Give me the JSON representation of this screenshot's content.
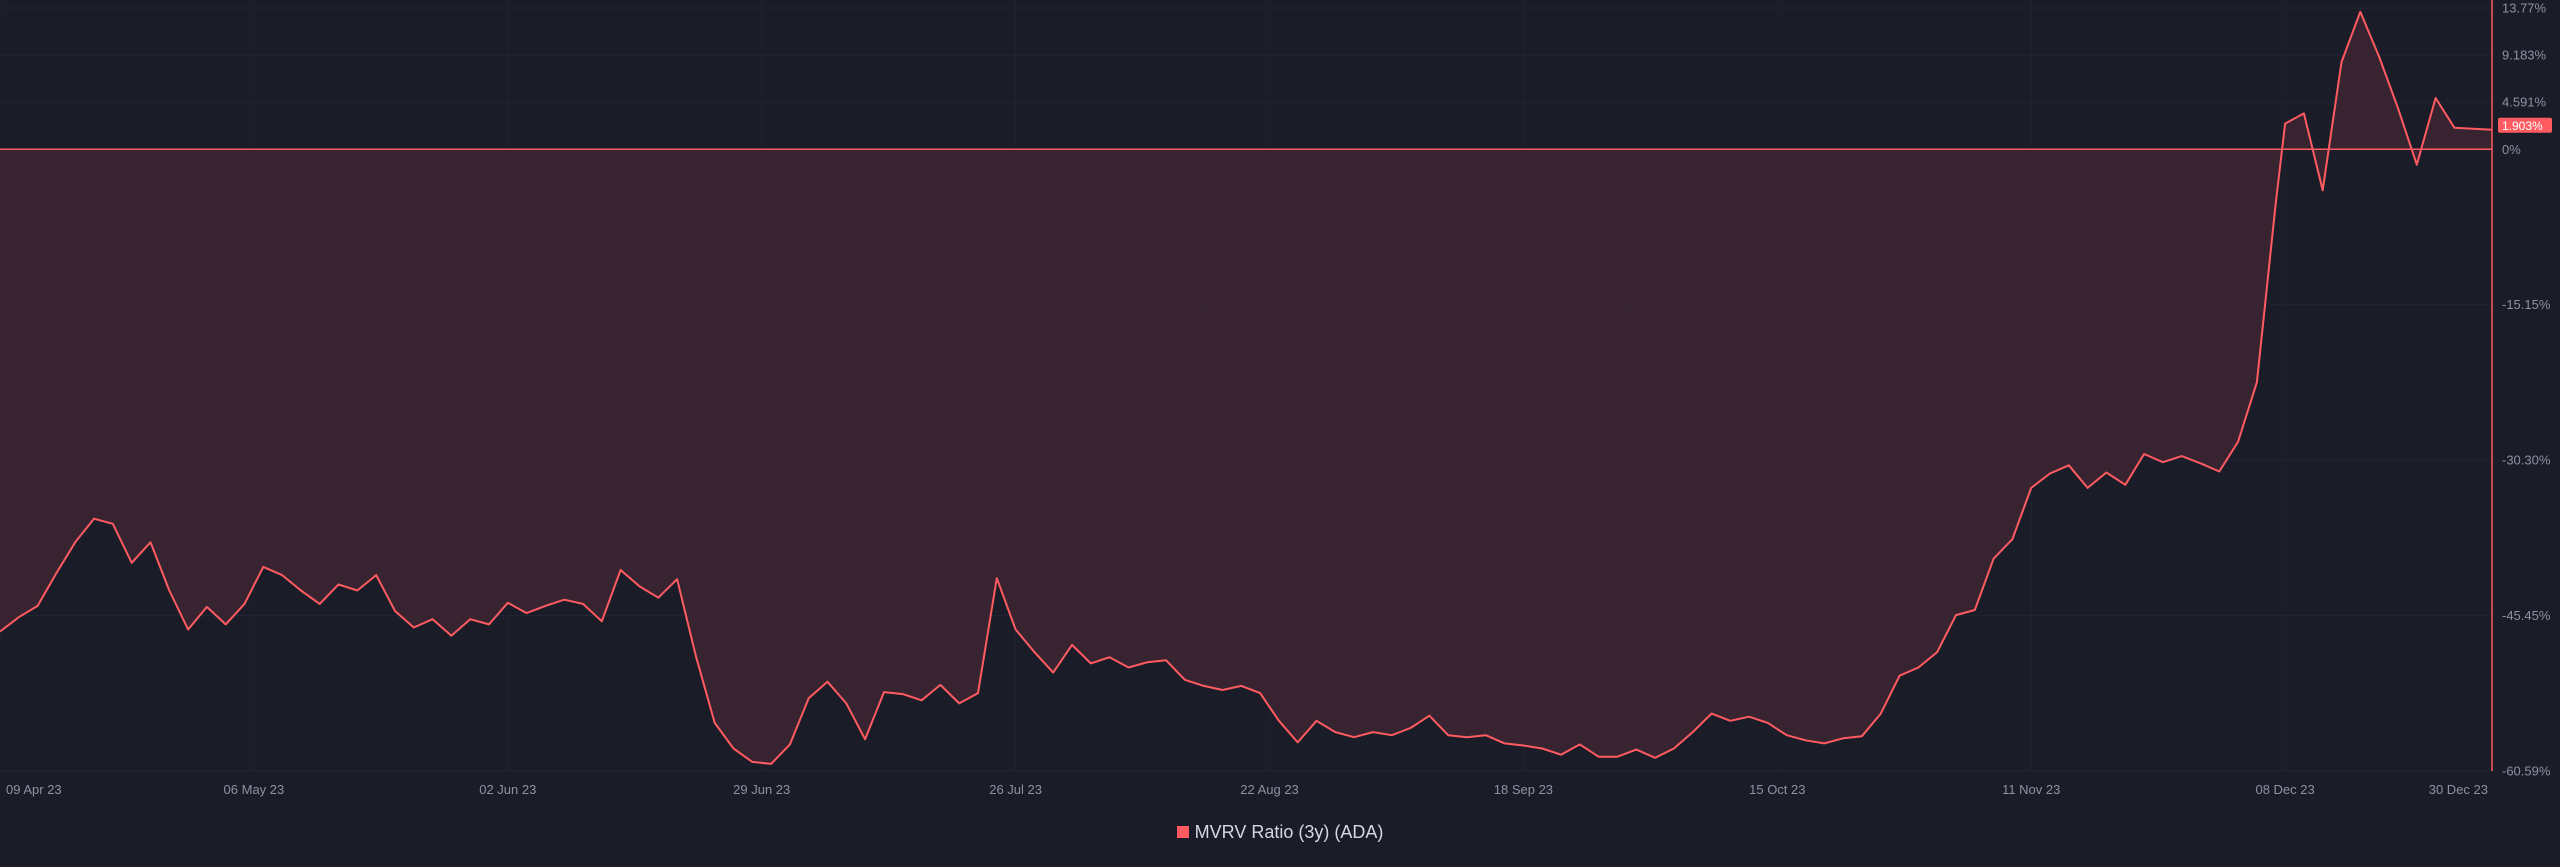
{
  "legend": {
    "label": "MVRV Ratio (3y) (ADA)"
  },
  "watermark": "·santiment·",
  "current_value_badge": "1.903%",
  "colors": {
    "background": "#1a1c28",
    "line": "#ff5b61",
    "fill_negative": "#3a2532",
    "badge": "#ff5b61"
  },
  "chart_data": {
    "type": "area",
    "title": "",
    "xlabel": "",
    "ylabel": "",
    "x_ticks": [
      "09 Apr 23",
      "06 May 23",
      "02 Jun 23",
      "29 Jun 23",
      "26 Jul 23",
      "22 Aug 23",
      "18 Sep 23",
      "15 Oct 23",
      "11 Nov 23",
      "08 Dec 23",
      "30 Dec 23"
    ],
    "y_ticks": [
      "13.77%",
      "9.183%",
      "4.591%",
      "0%",
      "-15.15%",
      "-30.30%",
      "-45.45%",
      "-60.59%"
    ],
    "ylim": [
      -60.59,
      13.77
    ],
    "xlim": [
      "2023-04-09",
      "2023-12-30"
    ],
    "baseline": 0,
    "grid": true,
    "legend_position": "bottom-center",
    "series": [
      {
        "name": "MVRV Ratio (3y) (ADA)",
        "points": [
          [
            "2023-04-09",
            -47.0
          ],
          [
            "2023-04-11",
            -45.6
          ],
          [
            "2023-04-13",
            -44.5
          ],
          [
            "2023-04-15",
            -41.3
          ],
          [
            "2023-04-17",
            -38.3
          ],
          [
            "2023-04-19",
            -36.0
          ],
          [
            "2023-04-21",
            -36.5
          ],
          [
            "2023-04-23",
            -40.3
          ],
          [
            "2023-04-25",
            -38.3
          ],
          [
            "2023-04-27",
            -43.0
          ],
          [
            "2023-04-29",
            -46.8
          ],
          [
            "2023-05-01",
            -44.6
          ],
          [
            "2023-05-03",
            -46.3
          ],
          [
            "2023-05-05",
            -44.3
          ],
          [
            "2023-05-07",
            -40.7
          ],
          [
            "2023-05-09",
            -41.5
          ],
          [
            "2023-05-11",
            -43.0
          ],
          [
            "2023-05-13",
            -44.3
          ],
          [
            "2023-05-15",
            -42.4
          ],
          [
            "2023-05-17",
            -43.0
          ],
          [
            "2023-05-19",
            -41.5
          ],
          [
            "2023-05-21",
            -45.0
          ],
          [
            "2023-05-23",
            -46.6
          ],
          [
            "2023-05-25",
            -45.8
          ],
          [
            "2023-05-27",
            -47.4
          ],
          [
            "2023-05-29",
            -45.8
          ],
          [
            "2023-05-31",
            -46.3
          ],
          [
            "2023-06-02",
            -44.2
          ],
          [
            "2023-06-04",
            -45.2
          ],
          [
            "2023-06-06",
            -44.5
          ],
          [
            "2023-06-08",
            -43.9
          ],
          [
            "2023-06-10",
            -44.3
          ],
          [
            "2023-06-12",
            -46.0
          ],
          [
            "2023-06-14",
            -41.0
          ],
          [
            "2023-06-16",
            -42.6
          ],
          [
            "2023-06-18",
            -43.7
          ],
          [
            "2023-06-20",
            -41.9
          ],
          [
            "2023-06-22",
            -49.4
          ],
          [
            "2023-06-24",
            -55.9
          ],
          [
            "2023-06-26",
            -58.4
          ],
          [
            "2023-06-28",
            -59.7
          ],
          [
            "2023-06-30",
            -59.9
          ],
          [
            "2023-07-02",
            -58.0
          ],
          [
            "2023-07-04",
            -53.5
          ],
          [
            "2023-07-06",
            -51.9
          ],
          [
            "2023-07-08",
            -54.0
          ],
          [
            "2023-07-10",
            -57.5
          ],
          [
            "2023-07-12",
            -52.9
          ],
          [
            "2023-07-14",
            -53.1
          ],
          [
            "2023-07-16",
            -53.7
          ],
          [
            "2023-07-18",
            -52.2
          ],
          [
            "2023-07-20",
            -54.0
          ],
          [
            "2023-07-22",
            -53.0
          ],
          [
            "2023-07-24",
            -41.8
          ],
          [
            "2023-07-26",
            -46.8
          ],
          [
            "2023-07-28",
            -49.0
          ],
          [
            "2023-07-30",
            -51.0
          ],
          [
            "2023-08-01",
            -48.3
          ],
          [
            "2023-08-03",
            -50.1
          ],
          [
            "2023-08-05",
            -49.5
          ],
          [
            "2023-08-07",
            -50.5
          ],
          [
            "2023-08-09",
            -50.0
          ],
          [
            "2023-08-11",
            -49.8
          ],
          [
            "2023-08-13",
            -51.7
          ],
          [
            "2023-08-15",
            -52.3
          ],
          [
            "2023-08-17",
            -52.7
          ],
          [
            "2023-08-19",
            -52.3
          ],
          [
            "2023-08-21",
            -53.0
          ],
          [
            "2023-08-23",
            -55.7
          ],
          [
            "2023-08-25",
            -57.8
          ],
          [
            "2023-08-27",
            -55.7
          ],
          [
            "2023-08-29",
            -56.8
          ],
          [
            "2023-08-31",
            -57.3
          ],
          [
            "2023-09-02",
            -56.8
          ],
          [
            "2023-09-04",
            -57.1
          ],
          [
            "2023-09-06",
            -56.4
          ],
          [
            "2023-09-08",
            -55.2
          ],
          [
            "2023-09-10",
            -57.1
          ],
          [
            "2023-09-12",
            -57.3
          ],
          [
            "2023-09-14",
            -57.1
          ],
          [
            "2023-09-16",
            -57.9
          ],
          [
            "2023-09-18",
            -58.1
          ],
          [
            "2023-09-20",
            -58.4
          ],
          [
            "2023-09-22",
            -59.0
          ],
          [
            "2023-09-24",
            -58.0
          ],
          [
            "2023-09-26",
            -59.2
          ],
          [
            "2023-09-28",
            -59.2
          ],
          [
            "2023-09-30",
            -58.5
          ],
          [
            "2023-10-02",
            -59.3
          ],
          [
            "2023-10-04",
            -58.4
          ],
          [
            "2023-10-06",
            -56.8
          ],
          [
            "2023-10-08",
            -55.0
          ],
          [
            "2023-10-10",
            -55.7
          ],
          [
            "2023-10-12",
            -55.3
          ],
          [
            "2023-10-14",
            -55.9
          ],
          [
            "2023-10-16",
            -57.1
          ],
          [
            "2023-10-18",
            -57.6
          ],
          [
            "2023-10-20",
            -57.9
          ],
          [
            "2023-10-22",
            -57.4
          ],
          [
            "2023-10-24",
            -57.2
          ],
          [
            "2023-10-26",
            -55.0
          ],
          [
            "2023-10-28",
            -51.3
          ],
          [
            "2023-10-30",
            -50.5
          ],
          [
            "2023-11-01",
            -49.0
          ],
          [
            "2023-11-03",
            -45.4
          ],
          [
            "2023-11-05",
            -44.9
          ],
          [
            "2023-11-07",
            -39.9
          ],
          [
            "2023-11-09",
            -38.0
          ],
          [
            "2023-11-11",
            -33.0
          ],
          [
            "2023-11-13",
            -31.6
          ],
          [
            "2023-11-15",
            -30.8
          ],
          [
            "2023-11-17",
            -33.0
          ],
          [
            "2023-11-19",
            -31.5
          ],
          [
            "2023-11-21",
            -32.7
          ],
          [
            "2023-11-23",
            -29.7
          ],
          [
            "2023-11-25",
            -30.5
          ],
          [
            "2023-11-27",
            -29.9
          ],
          [
            "2023-11-29",
            -30.6
          ],
          [
            "2023-12-01",
            -31.4
          ],
          [
            "2023-12-03",
            -28.5
          ],
          [
            "2023-12-05",
            -22.7
          ],
          [
            "2023-12-07",
            -5.3
          ],
          [
            "2023-12-08",
            2.5
          ],
          [
            "2023-12-10",
            3.5
          ],
          [
            "2023-12-12",
            -4.0
          ],
          [
            "2023-12-14",
            8.5
          ],
          [
            "2023-12-16",
            13.4
          ],
          [
            "2023-12-18",
            9.0
          ],
          [
            "2023-12-20",
            4.0
          ],
          [
            "2023-12-22",
            -1.5
          ],
          [
            "2023-12-24",
            5.0
          ],
          [
            "2023-12-26",
            2.1
          ],
          [
            "2023-12-28",
            2.0
          ],
          [
            "2023-12-30",
            1.903
          ]
        ]
      }
    ]
  }
}
